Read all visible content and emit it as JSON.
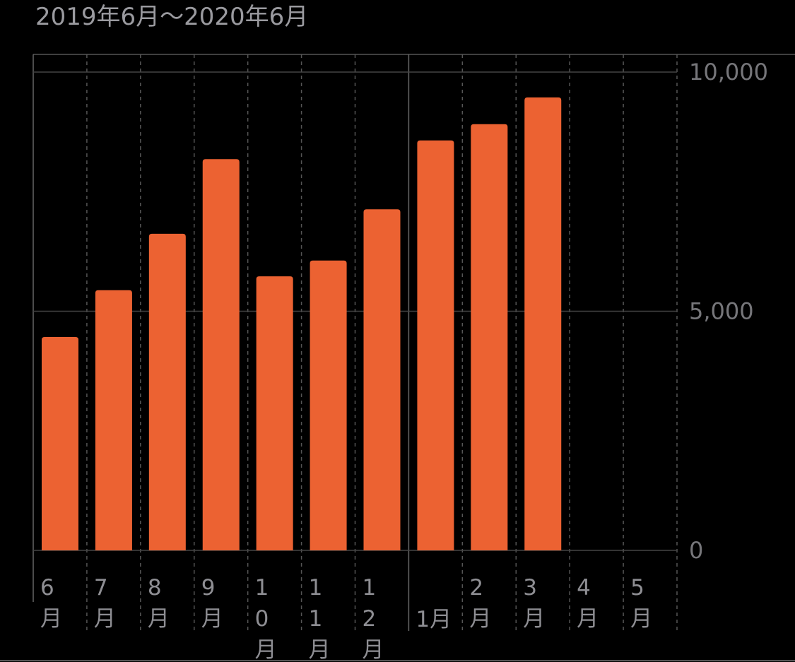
{
  "chart_data": {
    "type": "bar",
    "title": "2019年6月〜2020年6月",
    "categories": [
      "6月",
      "7月",
      "8月",
      "9月",
      "10月",
      "11月",
      "12月",
      "1月",
      "2月",
      "3月",
      "4月",
      "5月"
    ],
    "values": [
      4460,
      5440,
      6620,
      8180,
      5730,
      6060,
      7130,
      8570,
      8910,
      9470,
      null,
      null
    ],
    "color": "#ec6232",
    "ylim": [
      0,
      10000
    ],
    "yticks": [
      0,
      {
        "value": 5000,
        "label": "5,000"
      },
      {
        "value": 10000,
        "label": "10,000"
      }
    ],
    "grid": true
  }
}
